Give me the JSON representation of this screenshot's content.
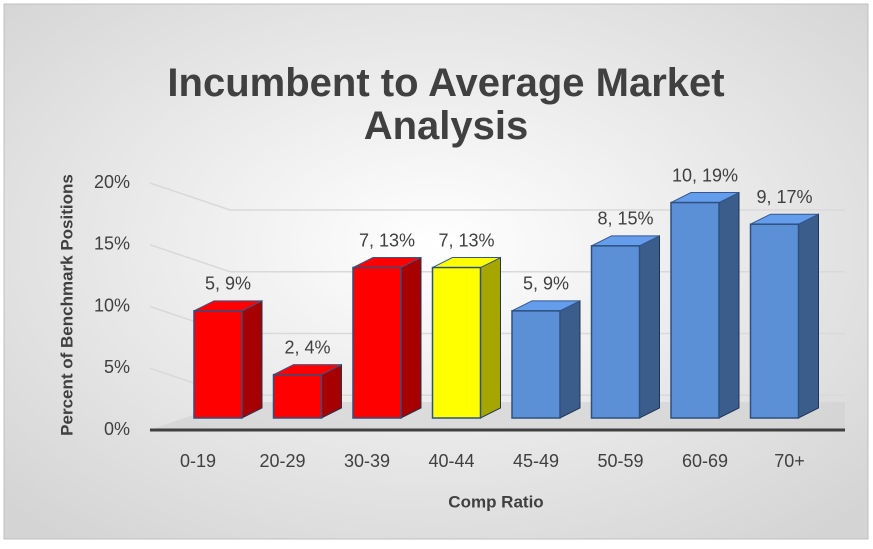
{
  "chart_data": {
    "type": "bar3d",
    "title": "Incumbent to Average Market Analysis",
    "categories": [
      "0-19",
      "20-29",
      "30-39",
      "40-44",
      "45-49",
      "50-59",
      "60-69",
      "70+"
    ],
    "values": [
      9.4,
      3.8,
      13.2,
      13.2,
      9.4,
      15.1,
      18.9,
      17.0
    ],
    "value_labels": [
      "5, 9%",
      "2, 4%",
      "7, 13%",
      "7, 13%",
      "5, 9%",
      "8, 15%",
      "10, 19%",
      "9, 17%"
    ],
    "colors": [
      "#ff0000",
      "#ff0000",
      "#ff0000",
      "#ffff00",
      "#5b8fd6",
      "#5b8fd6",
      "#5b8fd6",
      "#5b8fd6"
    ],
    "x_label": "Comp Ratio",
    "y_label": "Percent of Benchmark Positions",
    "ylim": [
      0,
      20
    ],
    "yticks": [
      {
        "value": 0,
        "label": "0%"
      },
      {
        "value": 5,
        "label": "5%"
      },
      {
        "value": 10,
        "label": "10%"
      },
      {
        "value": 15,
        "label": "15%"
      },
      {
        "value": 20,
        "label": "20%"
      }
    ],
    "grid": true
  }
}
